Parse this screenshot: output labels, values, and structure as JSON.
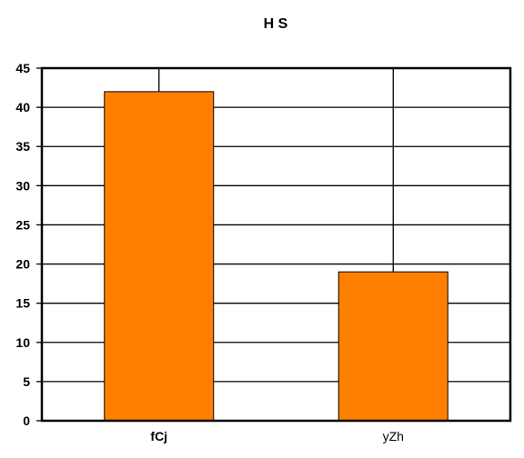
{
  "chart_data": {
    "type": "bar",
    "title": "H   S",
    "xlabel": "",
    "ylabel": "",
    "categories": [
      "fCj",
      "yZh"
    ],
    "values": [
      42,
      19
    ],
    "ylim": [
      0,
      45
    ],
    "y_ticks": [
      0,
      5,
      10,
      15,
      20,
      25,
      30,
      35,
      40,
      45
    ],
    "grid": true,
    "legend": "none",
    "bar_color": "#ff8000",
    "category_label_bold": [
      true,
      false
    ]
  }
}
